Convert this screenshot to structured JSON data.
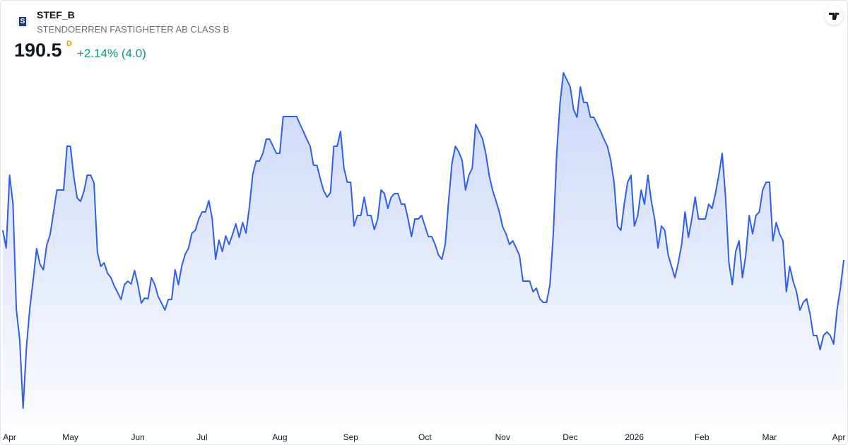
{
  "chart_data": {
    "type": "area",
    "title": "STEF_B",
    "subtitle": "STENDOERREN FASTIGHETER AB CLASS B",
    "logo_letter": "S",
    "price": 190.5,
    "price_flag": "D",
    "change": "+2.14% (4.0)",
    "color": "#2f5fe8",
    "categories": [
      null,
      null,
      "Apr",
      null,
      null,
      null,
      null,
      null,
      null,
      null,
      null,
      null,
      null,
      null,
      null,
      null,
      null,
      null,
      null,
      null,
      "May",
      null,
      null,
      null,
      null,
      null,
      null,
      null,
      null,
      null,
      null,
      null,
      null,
      null,
      null,
      null,
      null,
      null,
      null,
      null,
      "Jun",
      null,
      null,
      null,
      null,
      null,
      null,
      null,
      null,
      null,
      null,
      null,
      null,
      null,
      null,
      null,
      null,
      null,
      null,
      "Jul",
      null,
      null,
      null,
      null,
      null,
      null,
      null,
      null,
      null,
      null,
      null,
      null,
      null,
      null,
      null,
      null,
      null,
      null,
      null,
      null,
      null,
      null,
      "Aug",
      null,
      null,
      null,
      null,
      null,
      null,
      null,
      null,
      null,
      null,
      null,
      null,
      null,
      null,
      null,
      null,
      null,
      null,
      null,
      null,
      "Sep",
      null,
      null,
      null,
      null,
      null,
      null,
      null,
      null,
      null,
      null,
      null,
      null,
      null,
      null,
      null,
      null,
      null,
      null,
      null,
      null,
      null,
      "Oct",
      null,
      null,
      null,
      null,
      null,
      null,
      null,
      null,
      null,
      null,
      null,
      null,
      null,
      null,
      null,
      null,
      null,
      null,
      null,
      null,
      null,
      null,
      "Nov",
      null,
      null,
      null,
      null,
      null,
      null,
      null,
      null,
      null,
      null,
      null,
      null,
      null,
      null,
      null,
      null,
      null,
      null,
      null,
      "Dec",
      null,
      null,
      null,
      null,
      null,
      null,
      null,
      null,
      null,
      null,
      null,
      null,
      null,
      null,
      null,
      null,
      null,
      null,
      "2026",
      null,
      null,
      null,
      null,
      null,
      null,
      null,
      null,
      null,
      null,
      null,
      null,
      null,
      null,
      null,
      null,
      null,
      null,
      null,
      "Feb",
      null,
      null,
      null,
      null,
      null,
      null,
      null,
      null,
      null,
      null,
      null,
      null,
      null,
      null,
      null,
      null,
      null,
      null,
      null,
      "Mar",
      null,
      null,
      null,
      null,
      null,
      null,
      null,
      null,
      null,
      null,
      null,
      null,
      null,
      null,
      null,
      null,
      null,
      null,
      null,
      null,
      "Apr",
      null
    ],
    "values": [
      194.7,
      192.2,
      202.5,
      198.5,
      183.5,
      179.2,
      169.5,
      178.2,
      183.7,
      187.7,
      192.1,
      189.9,
      189.1,
      192.6,
      194.1,
      197.2,
      200.4,
      200.4,
      200.4,
      206.6,
      206.6,
      202.4,
      199.3,
      198.8,
      200.2,
      202.5,
      202.5,
      201.4,
      191.6,
      189.6,
      190.1,
      188.6,
      188.0,
      186.8,
      185.9,
      184.9,
      187.0,
      187.5,
      187.1,
      189.0,
      187.0,
      184.4,
      185.1,
      185.0,
      188.0,
      187.0,
      185.3,
      184.4,
      183.4,
      184.9,
      184.9,
      189.1,
      187.0,
      189.7,
      191.3,
      192.2,
      194.3,
      194.7,
      196.3,
      197.3,
      197.3,
      198.9,
      196.3,
      190.6,
      193.3,
      191.7,
      193.9,
      192.7,
      194.1,
      195.6,
      193.7,
      195.8,
      194.3,
      198.0,
      202.6,
      204.5,
      204.5,
      205.6,
      207.6,
      207.6,
      206.6,
      205.6,
      205.6,
      210.8,
      210.8,
      210.8,
      210.8,
      210.8,
      209.7,
      208.7,
      207.6,
      206.6,
      203.9,
      203.9,
      202.0,
      200.3,
      199.4,
      200.0,
      206.6,
      206.6,
      208.7,
      203.5,
      201.5,
      201.5,
      195.3,
      196.8,
      196.8,
      199.4,
      196.8,
      196.8,
      194.8,
      196.3,
      200.4,
      199.9,
      197.8,
      199.4,
      199.9,
      199.9,
      198.4,
      198.4,
      196.3,
      193.8,
      196.3,
      196.3,
      196.8,
      195.3,
      193.8,
      193.8,
      192.7,
      191.2,
      190.6,
      192.7,
      198.9,
      204.2,
      206.6,
      205.8,
      204.6,
      200.4,
      202.5,
      203.5,
      209.7,
      208.7,
      207.7,
      205.6,
      202.5,
      200.4,
      198.9,
      197.3,
      195.2,
      194.2,
      192.7,
      193.2,
      192.2,
      191.1,
      187.5,
      187.5,
      187.5,
      186.0,
      186.5,
      185.0,
      184.5,
      184.5,
      187.0,
      194.2,
      205.6,
      212.8,
      217.0,
      216.0,
      215.0,
      211.8,
      210.7,
      215.0,
      212.8,
      212.8,
      210.7,
      210.7,
      209.7,
      208.7,
      207.6,
      206.6,
      204.6,
      201.4,
      195.3,
      194.7,
      198.4,
      201.5,
      202.5,
      195.3,
      196.8,
      200.4,
      198.4,
      202.5,
      198.9,
      196.3,
      192.2,
      195.3,
      194.7,
      191.2,
      189.6,
      188.0,
      190.1,
      192.7,
      197.3,
      193.7,
      196.3,
      199.4,
      196.3,
      196.3,
      196.3,
      198.4,
      197.8,
      199.9,
      202.5,
      205.6,
      199.4,
      190.1,
      187.0,
      191.7,
      193.2,
      188.0,
      191.2,
      196.8,
      194.2,
      196.8,
      197.3,
      200.4,
      201.5,
      201.5,
      193.2,
      195.8,
      194.2,
      193.2,
      186.0,
      189.6,
      187.5,
      186.0,
      183.4,
      184.5,
      185.0,
      182.9,
      179.8,
      179.8,
      177.8,
      179.8,
      180.3,
      179.8,
      178.6,
      183.4,
      186.5,
      190.5
    ]
  }
}
